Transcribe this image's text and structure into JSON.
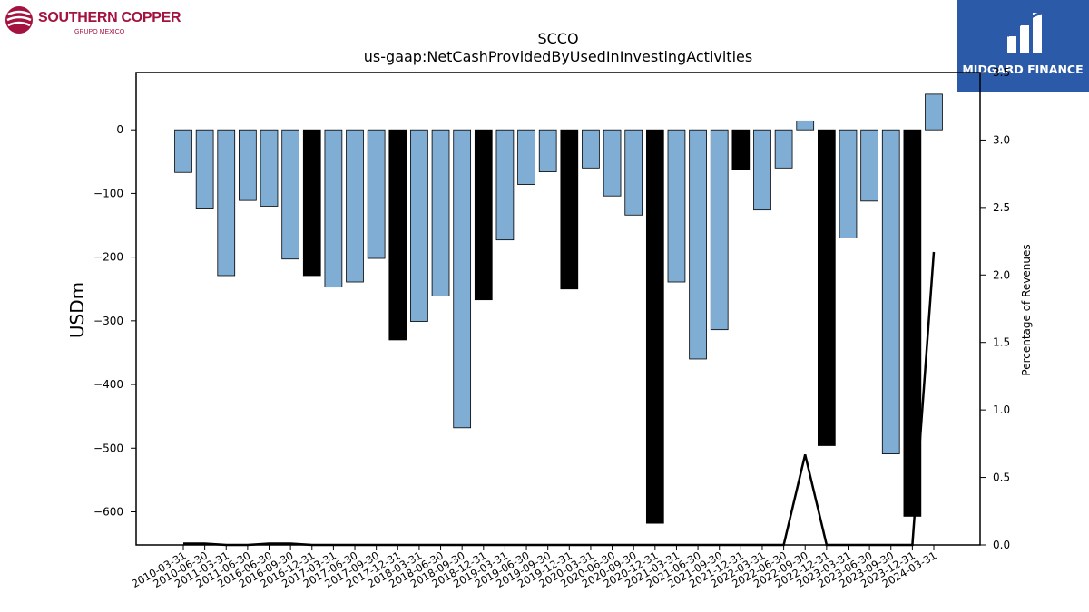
{
  "logo_left": {
    "name": "SOUTHERN COPPER",
    "sub": "GRUPO MEXICO",
    "color": "#a4123f"
  },
  "logo_right": {
    "name": "MIDGARD FINANCE",
    "bg": "#2b5aa8"
  },
  "chart_data": {
    "type": "bar",
    "title": "SCCO",
    "subtitle": "us-gaap:NetCashProvidedByUsedInInvestingActivities",
    "ylabel": "USDm",
    "y2label": "Percentage of Revenues",
    "ylim": [
      -652,
      90
    ],
    "y2lim": [
      0,
      3.5
    ],
    "yticks": [
      0,
      -100,
      -200,
      -300,
      -400,
      -500,
      -600
    ],
    "y2ticks": [
      0.0,
      0.5,
      1.0,
      1.5,
      2.0,
      2.5,
      3.0,
      3.5
    ],
    "categories": [
      "2010-03-31",
      "2010-06-30",
      "2011-03-31",
      "2011-06-30",
      "2016-06-30",
      "2016-09-30",
      "2016-12-31",
      "2017-03-31",
      "2017-06-30",
      "2017-09-30",
      "2017-12-31",
      "2018-03-31",
      "2018-06-30",
      "2018-09-30",
      "2018-12-31",
      "2019-03-31",
      "2019-06-30",
      "2019-09-30",
      "2019-12-31",
      "2020-03-31",
      "2020-06-30",
      "2020-09-30",
      "2020-12-31",
      "2021-03-31",
      "2021-06-30",
      "2021-09-30",
      "2021-12-31",
      "2022-03-31",
      "2022-06-30",
      "2022-09-30",
      "2022-12-31",
      "2023-03-31",
      "2023-06-30",
      "2023-09-30",
      "2023-12-31",
      "2024-03-31"
    ],
    "values": [
      -67,
      -123,
      -229,
      -111,
      -120,
      -203,
      -229,
      -247,
      -239,
      -202,
      -330,
      -301,
      -261,
      -468,
      -267,
      -173,
      -86,
      -66,
      -250,
      -60,
      -104,
      -134,
      -618,
      -239,
      -360,
      -314,
      -62,
      -126,
      -60,
      14,
      -496,
      -170,
      -112,
      -509,
      -607,
      56
    ],
    "highlight": [
      false,
      false,
      false,
      false,
      false,
      false,
      true,
      false,
      false,
      false,
      true,
      false,
      false,
      false,
      true,
      false,
      false,
      false,
      true,
      false,
      false,
      false,
      true,
      false,
      false,
      false,
      true,
      false,
      false,
      false,
      true,
      false,
      false,
      false,
      true,
      false
    ],
    "bar_color": "#7fadd3",
    "highlight_color": "#000000",
    "pct_revenue": [
      0.01,
      0.01,
      0,
      0,
      0.01,
      0.01,
      0,
      0,
      0,
      0,
      0,
      0,
      0,
      0,
      0,
      0,
      0,
      0,
      0,
      0,
      0,
      0,
      0,
      0,
      0,
      0,
      0,
      0,
      0,
      0.67,
      0,
      0,
      0,
      0,
      0,
      2.17
    ],
    "grid": false
  }
}
